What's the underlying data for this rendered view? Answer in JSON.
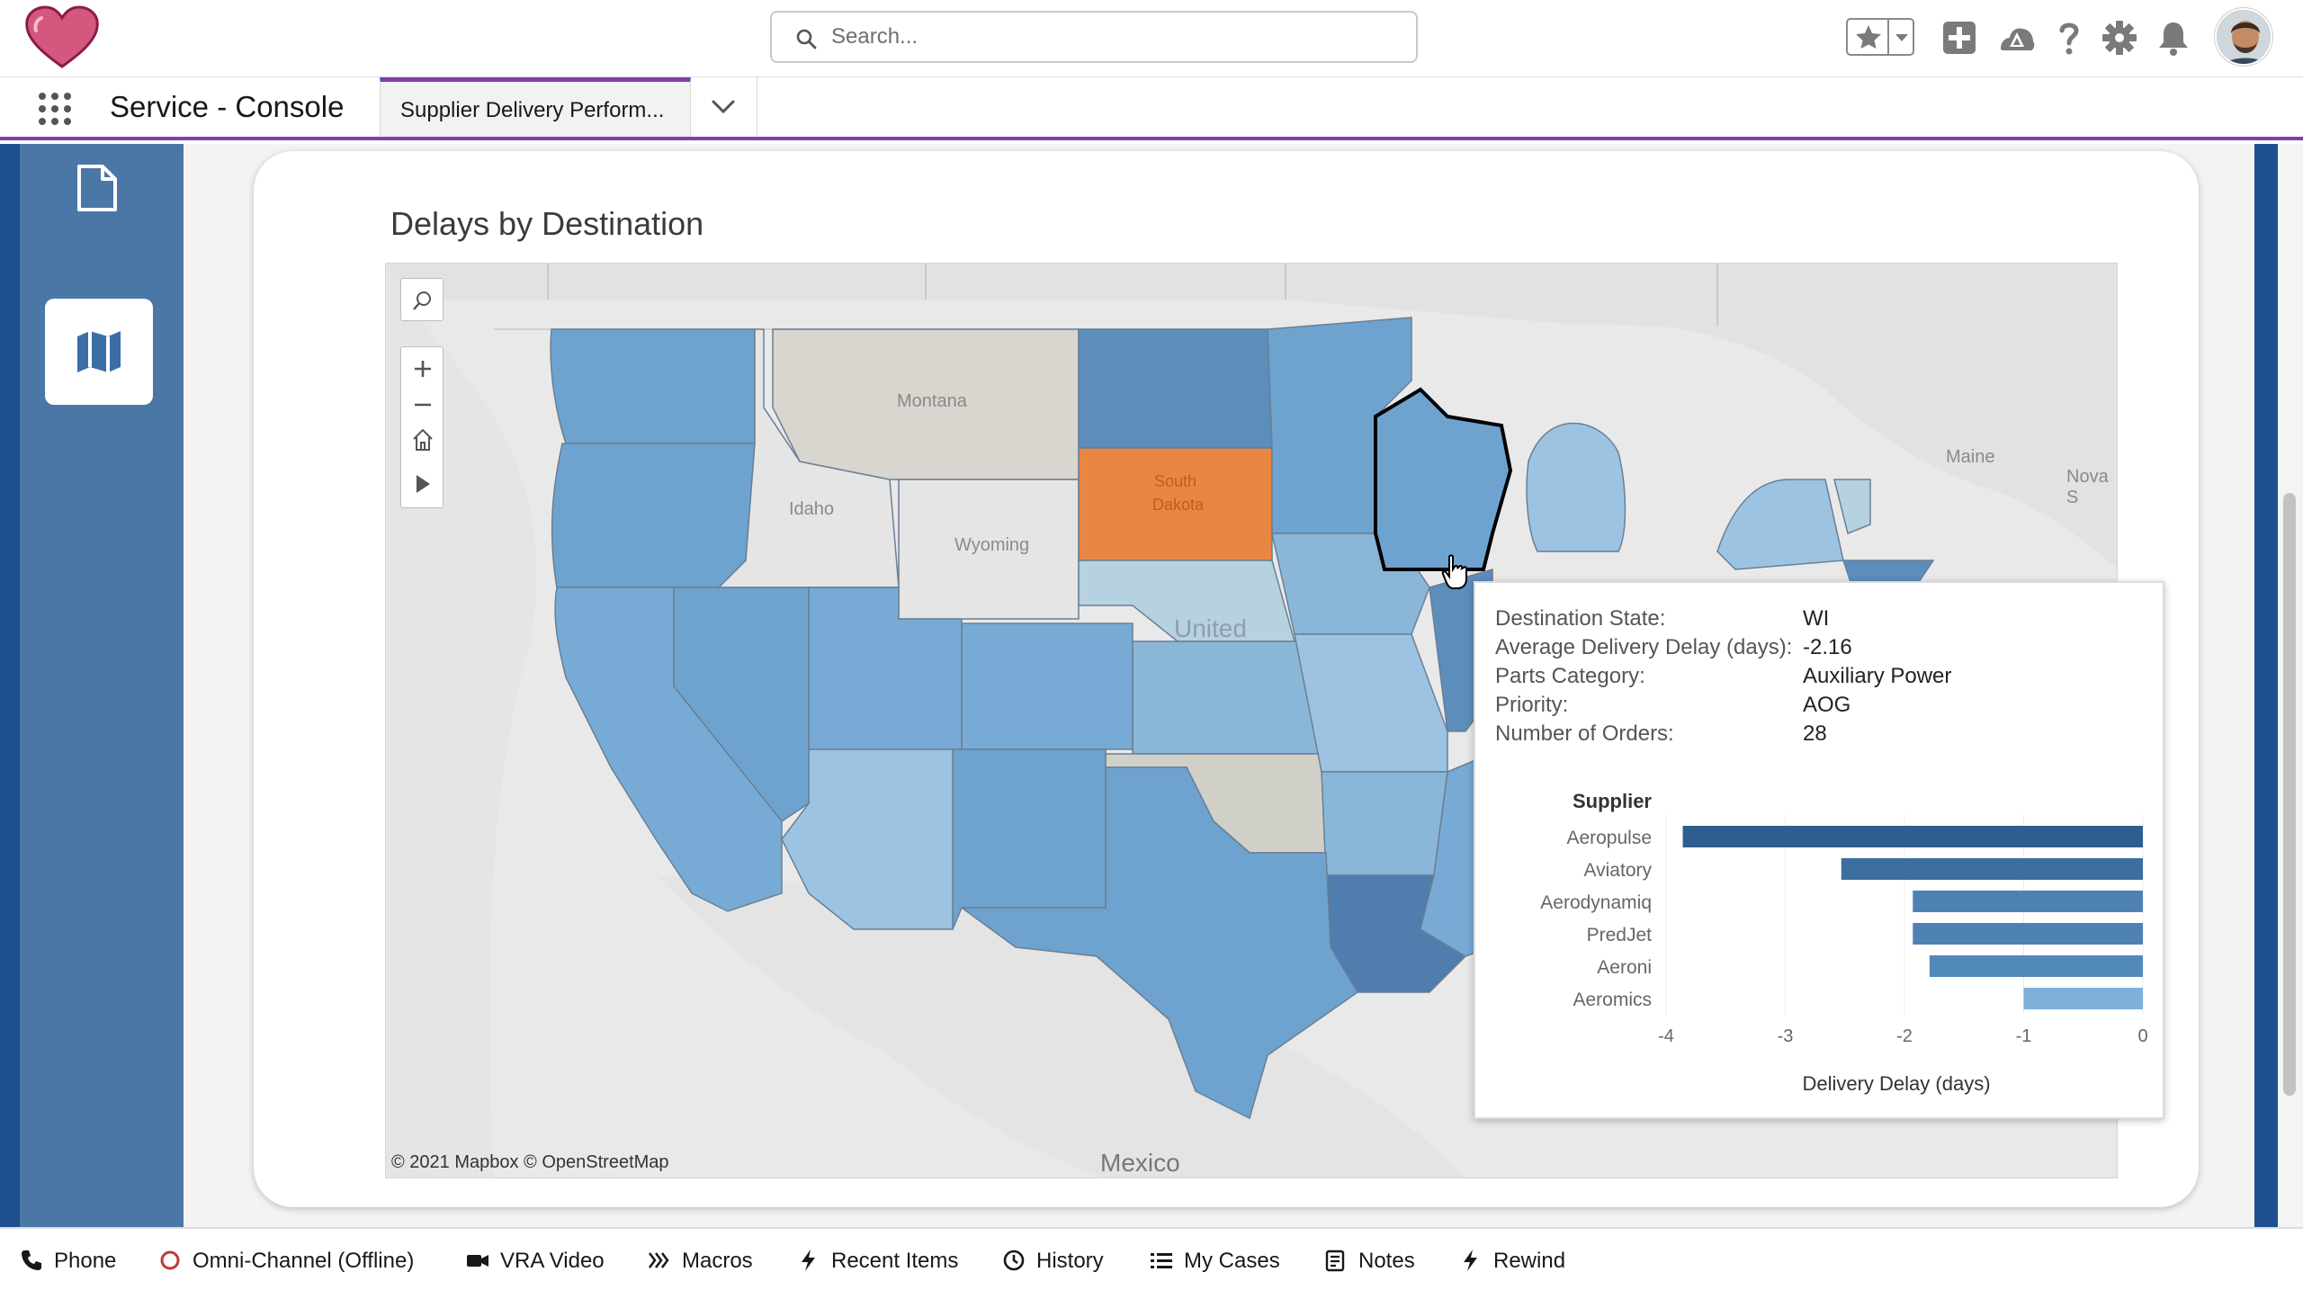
{
  "search": {
    "placeholder": "Search..."
  },
  "header": {
    "icons": [
      "favorites-star-icon",
      "chevron-down-icon",
      "global-actions-add-icon",
      "trailhead-icon",
      "help-icon",
      "setup-gear-icon",
      "notifications-bell-icon"
    ]
  },
  "nav": {
    "app_name": "Service - Console",
    "tab_label": "Supplier Delivery Perform..."
  },
  "sidebar": {
    "icons": [
      "document-icon",
      "map-icon"
    ]
  },
  "viz": {
    "title": "Delays by Destination",
    "map_labels": {
      "montana": "Montana",
      "idaho": "Idaho",
      "wyoming": "Wyoming",
      "south_dakota_1": "South",
      "south_dakota_2": "Dakota",
      "united": "United",
      "maine": "Maine",
      "nova": "Nova S",
      "mexico": "Mexico"
    },
    "attribution": "© 2021 Mapbox  © OpenStreetMap",
    "colors": {
      "highlight": "#ea8644",
      "dark": "#2e5e8f",
      "mid": "#6ea3cf",
      "light": "#9cc4e2",
      "neutral": "#d9d6cf"
    }
  },
  "tooltip": {
    "rows": [
      {
        "key": "Destination State:",
        "value": "WI"
      },
      {
        "key": "Average Delivery Delay (days):",
        "value": "-2.16"
      },
      {
        "key": "Parts Category:",
        "value": "Auxiliary Power"
      },
      {
        "key": "Priority:",
        "value": "AOG"
      },
      {
        "key": "Number of Orders:",
        "value": "28"
      }
    ]
  },
  "chart_data": {
    "type": "bar",
    "orientation": "horizontal",
    "category_label": "Supplier",
    "categories": [
      "Aeropulse",
      "Aviatory",
      "Aerodynamiq",
      "PredJet",
      "Aeroni",
      "Aeromics"
    ],
    "values": [
      -3.86,
      -2.53,
      -1.93,
      -1.93,
      -1.79,
      -1.0
    ],
    "xlabel": "Delivery Delay (days)",
    "xlim": [
      -4,
      0
    ],
    "ticks": [
      "-4",
      "-3",
      "-2",
      "-1",
      "0"
    ],
    "colors": [
      "#2e5e8f",
      "#3c6f9f",
      "#4e82b4",
      "#4e82b4",
      "#5289bb",
      "#7fb0d9"
    ]
  },
  "utility_bar": [
    {
      "label": "Phone",
      "icon": "phone-icon"
    },
    {
      "label": "Omni-Channel (Offline)",
      "icon": "offline-status-icon"
    },
    {
      "label": "VRA Video",
      "icon": "video-icon"
    },
    {
      "label": "Macros",
      "icon": "macros-icon"
    },
    {
      "label": "Recent Items",
      "icon": "bolt-icon"
    },
    {
      "label": "History",
      "icon": "clock-icon"
    },
    {
      "label": "My Cases",
      "icon": "list-icon"
    },
    {
      "label": "Notes",
      "icon": "notes-icon"
    },
    {
      "label": "Rewind",
      "icon": "bolt-icon"
    }
  ]
}
